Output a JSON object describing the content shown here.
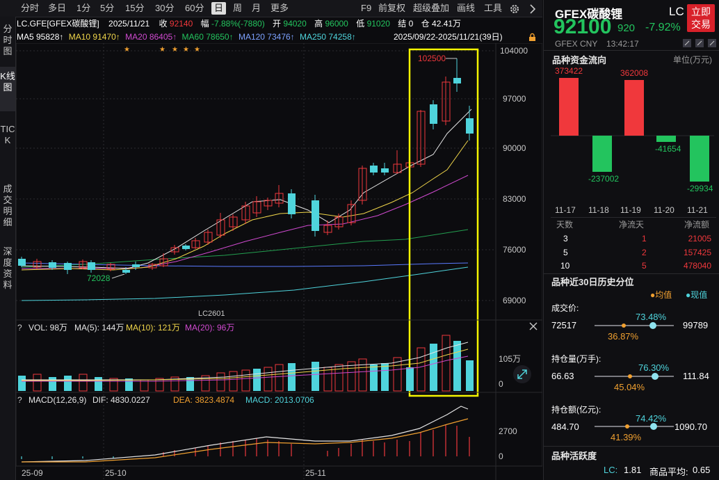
{
  "toolbar": {
    "periods": [
      "分时",
      "多日",
      "1分",
      "5分",
      "15分",
      "30分",
      "60分",
      "日",
      "周",
      "月",
      "更多"
    ],
    "active_period": "日",
    "right_items": [
      "F9",
      "前复权",
      "超级叠加",
      "画线",
      "工具"
    ]
  },
  "left_tabs": [
    "分时图",
    "K线图",
    "TICK",
    "成交明细",
    "深度资料"
  ],
  "info": {
    "symbol": "LC.GFE[GFEX碳酸锂]",
    "date": "2025/11/21",
    "close_label": "收",
    "close": "92140",
    "change_label": "幅",
    "change": "-7.88%(-7880)",
    "open_label": "开",
    "open": "94020",
    "high_label": "高",
    "high": "96000",
    "low_label": "低",
    "low": "91020",
    "settle_label": "结",
    "settle": "0",
    "oi_label": "仓",
    "oi": "42.41万"
  },
  "ma_legend": {
    "ma5": "MA5 95828↑",
    "ma10": "MA10 91470↑",
    "ma20": "MA20 86405↑",
    "ma60": "MA60 78650↑",
    "ma120": "MA120 73476↑",
    "ma250": "MA250 74258↑",
    "range": "2025/09/22-2025/11/21(39日)"
  },
  "main_chart": {
    "y_ticks": [
      "104000",
      "97000",
      "90000",
      "83000",
      "76000",
      "69000"
    ],
    "contract_label": "LC2601",
    "high_annotation": "102500",
    "low_annotation": "72028"
  },
  "vol_panel": {
    "label": "VOL: 98万",
    "ma5": "MA(5): 144万",
    "ma10": "MA(10): 121万",
    "ma20": "MA(20): 96万",
    "ticks": [
      "105万",
      "0"
    ]
  },
  "macd_panel": {
    "label": "MACD(12,26,9)",
    "dif": "DIF: 4830.0227",
    "dea": "DEA: 3823.4874",
    "macd": "MACD: 2013.0706",
    "ticks": [
      "2700",
      "0"
    ]
  },
  "x_axis": [
    "25-09",
    "25-10",
    "25-11"
  ],
  "right_panel": {
    "name": "GFEX碳酸锂",
    "code": "LC",
    "trade_button": "立即交易",
    "price": "92100",
    "price_small": "920",
    "change_pct": "-7.92%",
    "exchange": "GFEX",
    "currency": "CNY",
    "time": "13:42:17",
    "flow_title": "品种资金流向",
    "flow_unit": "单位(万元)",
    "flow_bars": [
      {
        "date": "11-17",
        "value": "373422",
        "sign": "pos"
      },
      {
        "date": "11-18",
        "value": "-237002",
        "sign": "neg"
      },
      {
        "date": "11-19",
        "value": "362008",
        "sign": "pos"
      },
      {
        "date": "11-20",
        "value": "-41654",
        "sign": "neg"
      },
      {
        "date": "11-21",
        "value": "-29934",
        "sign": "neg"
      }
    ],
    "table_headers": [
      "天数",
      "净流天",
      "净流额"
    ],
    "table_rows": [
      {
        "days": "3",
        "flow_days": "1",
        "amount": "21005"
      },
      {
        "days": "5",
        "flow_days": "2",
        "amount": "157425"
      },
      {
        "days": "10",
        "flow_days": "5",
        "amount": "478040"
      }
    ],
    "hist_title": "品种近30日历史分位",
    "legend_avg": "●均值",
    "legend_cur": "●现值",
    "metrics": [
      {
        "title": "成交价:",
        "min": "72517",
        "max": "99789",
        "cur_pct": "73.48%",
        "avg_pct": "36.87%"
      },
      {
        "title": "持仓量(万手):",
        "min": "66.63",
        "max": "111.84",
        "cur_pct": "76.30%",
        "avg_pct": "45.04%"
      },
      {
        "title": "持仓额(亿元):",
        "min": "484.70",
        "max": "1090.70",
        "cur_pct": "74.42%",
        "avg_pct": "41.39%"
      }
    ],
    "activity_title": "品种活跃度",
    "activity_lc_label": "LC:",
    "activity_lc": "1.81",
    "activity_avg_label": "商品平均:",
    "activity_avg": "0.65"
  }
}
